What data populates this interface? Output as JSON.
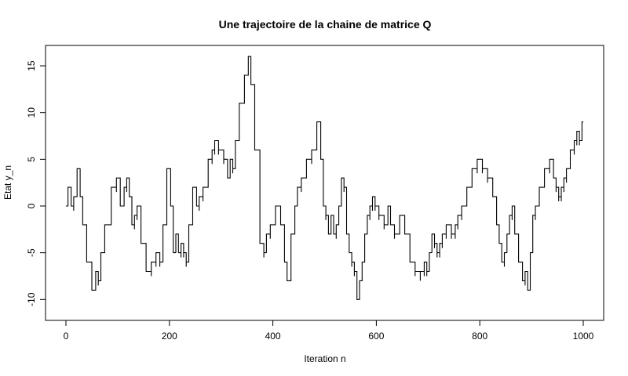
{
  "chart_data": {
    "type": "line",
    "title": "Une trajectoire de la chaine de matrice Q",
    "xlabel": "Iteration n",
    "ylabel": "Etat y_n",
    "xlim": [
      0,
      1000
    ],
    "ylim": [
      -11,
      16
    ],
    "x_ticks": [
      0,
      200,
      400,
      600,
      800,
      1000
    ],
    "y_ticks": [
      -10,
      -5,
      0,
      5,
      10,
      15
    ],
    "grid": false,
    "legend": "none",
    "series": [
      {
        "color": "#000000",
        "x": [
          0,
          8,
          12,
          18,
          25,
          30,
          35,
          45,
          55,
          60,
          65,
          70,
          80,
          95,
          100,
          110,
          115,
          120,
          125,
          130,
          135,
          140,
          150,
          160,
          170,
          178,
          185,
          190,
          200,
          205,
          210,
          215,
          220,
          225,
          230,
          235,
          240,
          250,
          255,
          260,
          270,
          280,
          285,
          290,
          300,
          310,
          315,
          320,
          325,
          330,
          340,
          350,
          355,
          360,
          370,
          380,
          385,
          390,
          400,
          410,
          420,
          425,
          430,
          440,
          445,
          450,
          460,
          470,
          480,
          490,
          495,
          500,
          505,
          510,
          515,
          520,
          525,
          530,
          535,
          540,
          545,
          550,
          555,
          560,
          565,
          570,
          575,
          580,
          585,
          590,
          595,
          600,
          610,
          620,
          625,
          630,
          640,
          650,
          660,
          670,
          680,
          690,
          695,
          700,
          705,
          710,
          715,
          720,
          725,
          730,
          740,
          750,
          755,
          760,
          770,
          780,
          790,
          800,
          810,
          820,
          830,
          835,
          840,
          845,
          850,
          855,
          860,
          865,
          870,
          880,
          885,
          890,
          895,
          900,
          905,
          910,
          920,
          930,
          940,
          945,
          950,
          955,
          960,
          965,
          970,
          980,
          985,
          990,
          995,
          1000
        ],
        "values": [
          0,
          2,
          0,
          1,
          4,
          1,
          -2,
          -6,
          -9,
          -7,
          -8,
          -5,
          -2,
          2,
          3,
          0,
          2,
          3,
          1,
          -2,
          -1,
          0,
          -4,
          -7,
          -6,
          -5,
          -6,
          -2,
          4,
          0,
          -5,
          -3,
          -5,
          -4,
          -5,
          -6,
          -2,
          2,
          0,
          1,
          2,
          5,
          6,
          7,
          6,
          5,
          3,
          5,
          4,
          7,
          11,
          14,
          16,
          13,
          6,
          -4,
          -5,
          -3,
          -2,
          0,
          -2,
          -6,
          -8,
          -3,
          0,
          2,
          3,
          5,
          6,
          9,
          5,
          0,
          -1,
          -3,
          -1,
          -3,
          -2,
          0,
          3,
          2,
          -3,
          -5,
          -6,
          -7,
          -10,
          -8,
          -6,
          -3,
          -1,
          0,
          1,
          0,
          -1,
          -2,
          0,
          -2,
          -3,
          -1,
          -3,
          -6,
          -7,
          -7,
          -6,
          -7,
          -5,
          -3,
          -4,
          -5,
          -4,
          -3,
          -2,
          -3,
          -2,
          -1,
          0,
          2,
          4,
          5,
          4,
          3,
          1,
          -2,
          -4,
          -6,
          -5,
          -3,
          -1,
          0,
          -3,
          -6,
          -8,
          -7,
          -9,
          -5,
          -1,
          0,
          2,
          4,
          5,
          3,
          2,
          1,
          2,
          3,
          4,
          6,
          7,
          8,
          7,
          9
        ]
      }
    ]
  }
}
